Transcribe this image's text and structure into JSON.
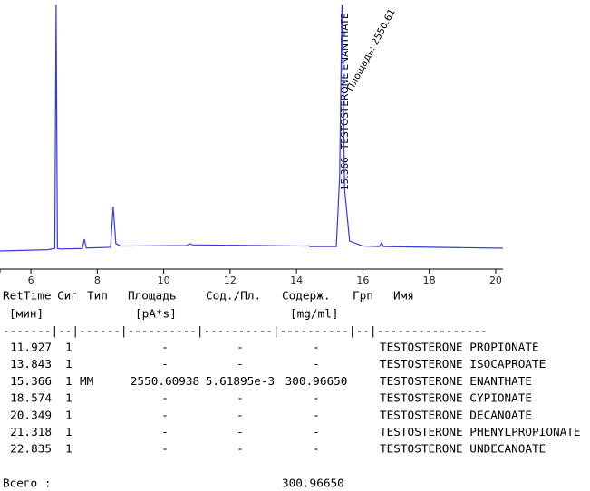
{
  "chart_data": {
    "type": "line",
    "xlim": [
      5.07,
      20.22
    ],
    "ylim": [
      0,
      100
    ],
    "xticks": [
      6,
      8,
      10,
      12,
      14,
      16,
      18,
      20
    ],
    "x": [
      5.07,
      6.5,
      6.72,
      6.76,
      6.8,
      6.9,
      7.55,
      7.61,
      7.67,
      8.4,
      8.48,
      8.56,
      8.7,
      10.7,
      10.78,
      10.86,
      14.3,
      14.35,
      14.4,
      15.2,
      15.3,
      15.37,
      15.45,
      15.6,
      16.0,
      16.5,
      16.56,
      16.62,
      20.22
    ],
    "series": [
      {
        "color": "#3a3ad8",
        "values": [
          0,
          0.5,
          1,
          100,
          1,
          0.8,
          1,
          4.8,
          1.2,
          1.5,
          18,
          3,
          2,
          2.2,
          3,
          2.5,
          2,
          2.2,
          1.8,
          1.8,
          30,
          100,
          25,
          4,
          2,
          1.8,
          3.3,
          1.8,
          1.1
        ]
      }
    ],
    "annotations": [
      "15.366",
      "TESTOSTERONE ENANTHATE",
      "Площадь: 2550.61"
    ]
  },
  "table": {
    "header": [
      "RetTime",
      "Сиг",
      "Тип",
      "Площадь",
      "Сод./Пл.",
      "Содерж.",
      "Грп",
      "Имя"
    ],
    "units": [
      "[мин]",
      "[pA*s]",
      "[mg/ml]"
    ],
    "separator": "-------|--|------|----------|----------|----------|--|----------------",
    "rows": [
      [
        "11.927",
        "1",
        "",
        "-",
        "-",
        "-",
        "TESTOSTERONE PROPIONATE"
      ],
      [
        "13.843",
        "1",
        "",
        "-",
        "-",
        "-",
        "TESTOSTERONE ISOCAPROATE"
      ],
      [
        "15.366",
        "1",
        "MM",
        "2550.60938",
        "5.61895e-3",
        "300.96650",
        "TESTOSTERONE ENANTHATE"
      ],
      [
        "18.574",
        "1",
        "",
        "-",
        "-",
        "-",
        "TESTOSTERONE CYPIONATE"
      ],
      [
        "20.349",
        "1",
        "",
        "-",
        "-",
        "-",
        "TESTOSTERONE DECANOATE"
      ],
      [
        "21.318",
        "1",
        "",
        "-",
        "-",
        "-",
        "TESTOSTERONE PHENYLPROPIONATE"
      ],
      [
        "22.835",
        "1",
        "",
        "-",
        "-",
        "-",
        "TESTOSTERONE UNDECANOATE"
      ]
    ],
    "total_label": "Всего :",
    "total_value": "300.96650"
  }
}
